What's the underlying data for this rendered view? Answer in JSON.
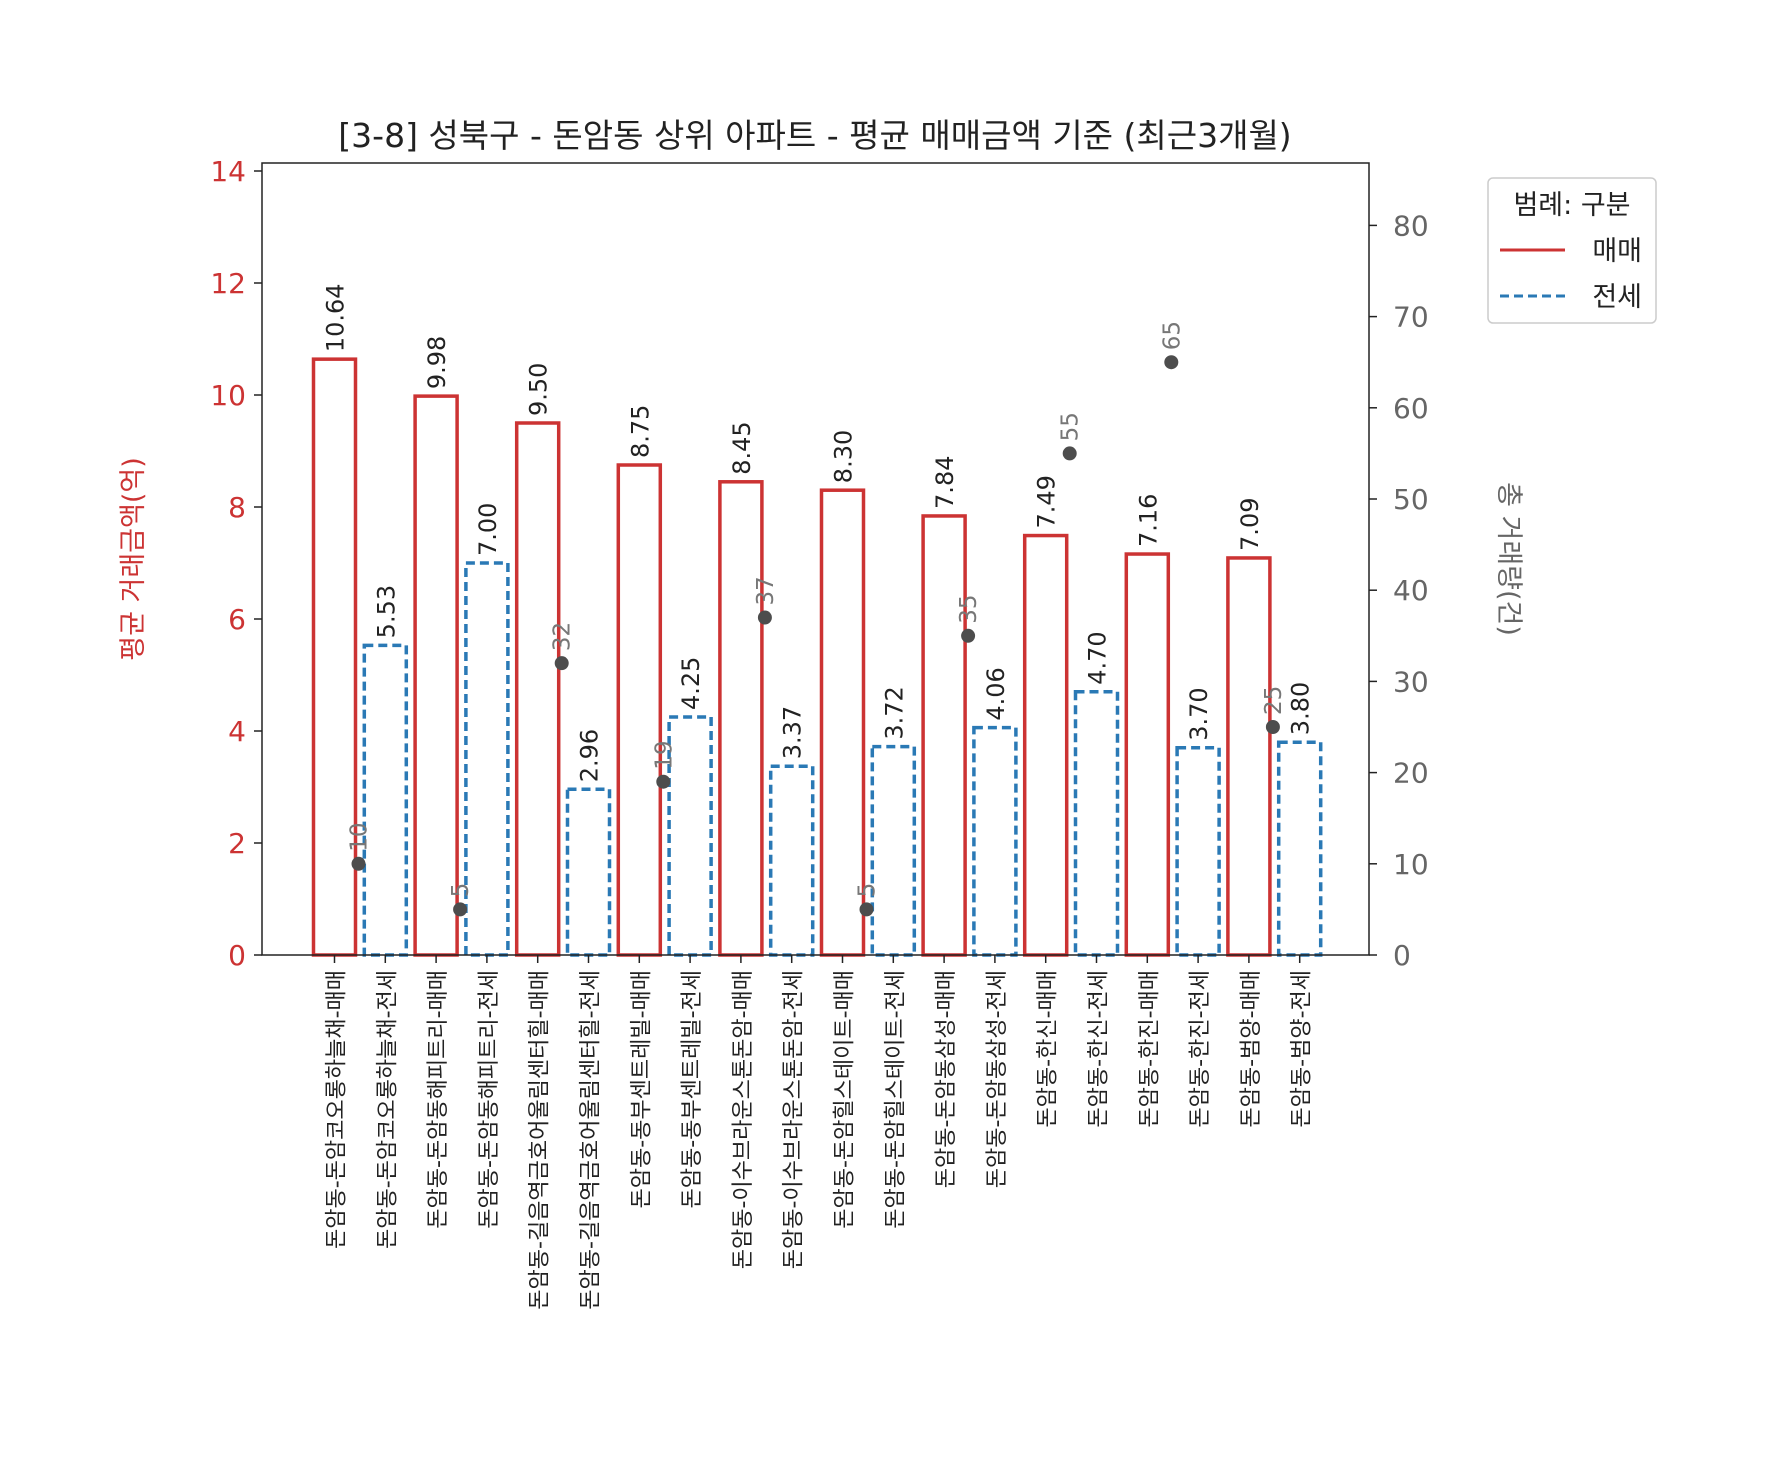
{
  "chart_data": {
    "type": "bar",
    "title": "[3-8] 성북구 - 돈암동 상위 아파트 - 평균 매매금액 기준 (최근3개월)",
    "ylabel_left": "평균 거래금액(억)",
    "ylabel_right": "총 거래량(건)",
    "ylim_left": [
      0,
      14
    ],
    "ylim_right": [
      0,
      86
    ],
    "yticks_left": [
      0,
      2,
      4,
      6,
      8,
      10,
      12,
      14
    ],
    "yticks_right": [
      0,
      10,
      20,
      30,
      40,
      50,
      60,
      70,
      80
    ],
    "legend": {
      "title": "범례: 구분",
      "position": "top-right, outside",
      "entries": [
        {
          "label": "매매",
          "style": "solid",
          "color": "#cc3333"
        },
        {
          "label": "전세",
          "style": "dashed",
          "color": "#2a79b5"
        }
      ]
    },
    "colors": {
      "sale": "#cc3333",
      "jeonse": "#2a79b5",
      "count_marker": "#4d4d4d",
      "left_axis": "#cc3333",
      "right_axis": "#666666"
    },
    "grid": false,
    "categories": [
      {
        "label": "돈암동-돈암코오롱하늘채-매매",
        "kind": "매매",
        "value": 10.64,
        "value_label": "10.64",
        "count": 10,
        "count_label": "10"
      },
      {
        "label": "돈암동-돈암코오롱하늘채-전세",
        "kind": "전세",
        "value": 5.53,
        "value_label": "5.53",
        "count": null,
        "count_label": ""
      },
      {
        "label": "돈암동-돈암동해피트리-매매",
        "kind": "매매",
        "value": 9.98,
        "value_label": "9.98",
        "count": 5,
        "count_label": "5"
      },
      {
        "label": "돈암동-돈암동해피트리-전세",
        "kind": "전세",
        "value": 7.0,
        "value_label": "7.00",
        "count": null,
        "count_label": ""
      },
      {
        "label": "돈암동-길음역금호어울림센터힐-매매",
        "kind": "매매",
        "value": 9.5,
        "value_label": "9.50",
        "count": 32,
        "count_label": "32"
      },
      {
        "label": "돈암동-길음역금호어울림센터힐-전세",
        "kind": "전세",
        "value": 2.96,
        "value_label": "2.96",
        "count": null,
        "count_label": ""
      },
      {
        "label": "돈암동-동부센트레빌-매매",
        "kind": "매매",
        "value": 8.75,
        "value_label": "8.75",
        "count": 19,
        "count_label": "19"
      },
      {
        "label": "돈암동-동부센트레빌-전세",
        "kind": "전세",
        "value": 4.25,
        "value_label": "4.25",
        "count": null,
        "count_label": ""
      },
      {
        "label": "돈암동-이수브라운스톤돈암-매매",
        "kind": "매매",
        "value": 8.45,
        "value_label": "8.45",
        "count": 37,
        "count_label": "37"
      },
      {
        "label": "돈암동-이수브라운스톤돈암-전세",
        "kind": "전세",
        "value": 3.37,
        "value_label": "3.37",
        "count": null,
        "count_label": ""
      },
      {
        "label": "돈암동-돈암힐스테이트-매매",
        "kind": "매매",
        "value": 8.3,
        "value_label": "8.30",
        "count": 5,
        "count_label": "5"
      },
      {
        "label": "돈암동-돈암힐스테이트-전세",
        "kind": "전세",
        "value": 3.72,
        "value_label": "3.72",
        "count": null,
        "count_label": ""
      },
      {
        "label": "돈암동-돈암동삼성-매매",
        "kind": "매매",
        "value": 7.84,
        "value_label": "7.84",
        "count": 35,
        "count_label": "35"
      },
      {
        "label": "돈암동-돈암동삼성-전세",
        "kind": "전세",
        "value": 4.06,
        "value_label": "4.06",
        "count": null,
        "count_label": ""
      },
      {
        "label": "돈암동-한신-매매",
        "kind": "매매",
        "value": 7.49,
        "value_label": "7.49",
        "count": 55,
        "count_label": "55"
      },
      {
        "label": "돈암동-한신-전세",
        "kind": "전세",
        "value": 4.7,
        "value_label": "4.70",
        "count": null,
        "count_label": ""
      },
      {
        "label": "돈암동-한진-매매",
        "kind": "매매",
        "value": 7.16,
        "value_label": "7.16",
        "count": 65,
        "count_label": "65"
      },
      {
        "label": "돈암동-한진-전세",
        "kind": "전세",
        "value": 3.7,
        "value_label": "3.70",
        "count": null,
        "count_label": ""
      },
      {
        "label": "돈암동-범양-매매",
        "kind": "매매",
        "value": 7.09,
        "value_label": "7.09",
        "count": 25,
        "count_label": "25"
      },
      {
        "label": "돈암동-범양-전세",
        "kind": "전세",
        "value": 3.8,
        "value_label": "3.80",
        "count": null,
        "count_label": ""
      }
    ]
  }
}
